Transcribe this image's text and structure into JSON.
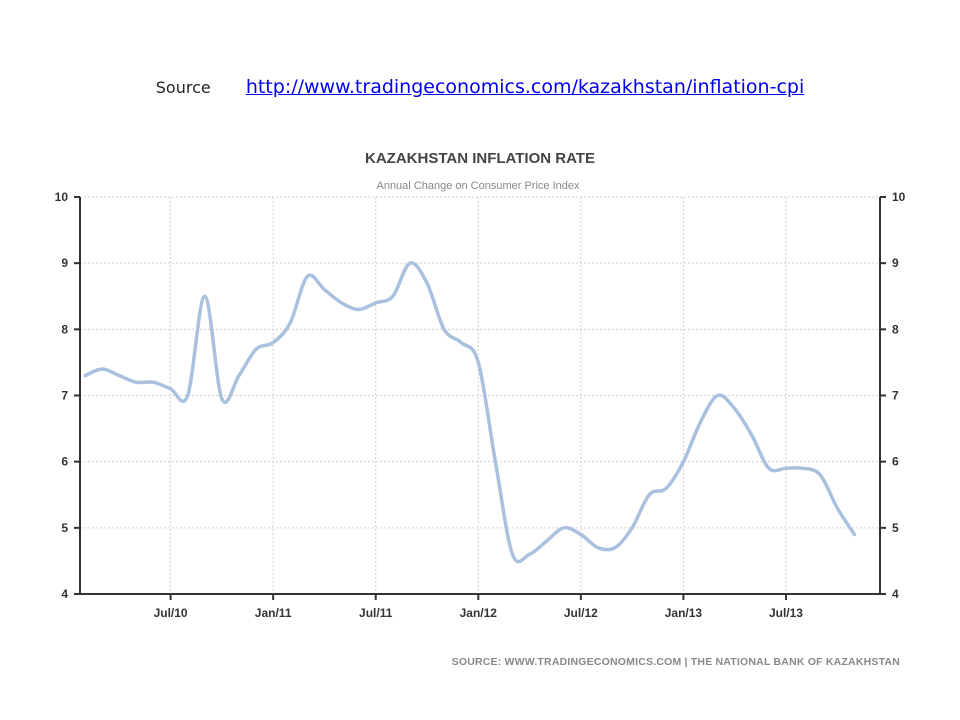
{
  "header": {
    "source_label": "Source",
    "source_url": "http://www.tradingeconomics.com/kazakhstan/inflation-cpi"
  },
  "footer": {
    "text": "SOURCE: WWW.TRADINGECONOMICS.COM | THE NATIONAL BANK OF KAZAKHSTAN"
  },
  "colors": {
    "line": "#a9c0df",
    "grid": "#d0d0d0",
    "axis": "#333333"
  },
  "chart_data": {
    "type": "line",
    "title": "KAZAKHSTAN INFLATION RATE",
    "subtitle": "Annual Change on Consumer Price Index",
    "xlabel": "",
    "ylabel": "",
    "ylim": [
      4,
      10
    ],
    "y_ticks": [
      4,
      5,
      6,
      7,
      8,
      9,
      10
    ],
    "y_axis_both_sides": true,
    "grid": true,
    "x_ticks": [
      "Jul/10",
      "Jan/11",
      "Jul/11",
      "Jan/12",
      "Jul/12",
      "Jan/13",
      "Jul/13"
    ],
    "x_range": [
      "2010-02",
      "2013-11"
    ],
    "series": [
      {
        "x": [
          "2010-02",
          "2010-03",
          "2010-04",
          "2010-05",
          "2010-06",
          "2010-07",
          "2010-08",
          "2010-09",
          "2010-10",
          "2010-11",
          "2010-12",
          "2011-01",
          "2011-02",
          "2011-03",
          "2011-04",
          "2011-05",
          "2011-06",
          "2011-07",
          "2011-08",
          "2011-09",
          "2011-10",
          "2011-11",
          "2011-12",
          "2012-01",
          "2012-02",
          "2012-03",
          "2012-04",
          "2012-05",
          "2012-06",
          "2012-07",
          "2012-08",
          "2012-09",
          "2012-10",
          "2012-11",
          "2012-12",
          "2013-01",
          "2013-02",
          "2013-03",
          "2013-04",
          "2013-05",
          "2013-06",
          "2013-07",
          "2013-08",
          "2013-09",
          "2013-10",
          "2013-11"
        ],
        "values": [
          7.3,
          7.4,
          7.3,
          7.2,
          7.2,
          7.1,
          7.0,
          8.5,
          6.95,
          7.3,
          7.7,
          7.8,
          8.1,
          8.8,
          8.6,
          8.4,
          8.3,
          8.4,
          8.5,
          9.0,
          8.7,
          8.0,
          7.8,
          7.5,
          6.0,
          4.6,
          4.6,
          4.8,
          5.0,
          4.9,
          4.7,
          4.7,
          5.0,
          5.5,
          5.6,
          6.0,
          6.6,
          7.0,
          6.8,
          6.4,
          5.9,
          5.9,
          5.9,
          5.8,
          5.3,
          4.9
        ]
      }
    ]
  }
}
